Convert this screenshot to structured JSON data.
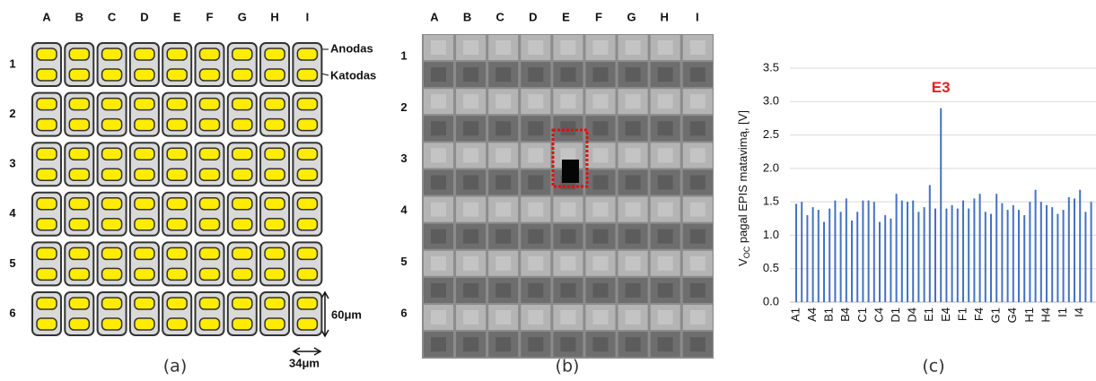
{
  "panel_a": {
    "columns": [
      "A",
      "B",
      "C",
      "D",
      "E",
      "F",
      "G",
      "H",
      "I"
    ],
    "rows": [
      "1",
      "2",
      "3",
      "4",
      "5",
      "6"
    ],
    "anode_label": "Anodas",
    "cathode_label": "Katodas",
    "height_label": "60μm",
    "width_label": "34μm",
    "caption": "(a)"
  },
  "panel_b": {
    "columns": [
      "A",
      "B",
      "C",
      "D",
      "E",
      "F",
      "G",
      "H",
      "I"
    ],
    "rows": [
      "1",
      "2",
      "3",
      "4",
      "5",
      "6"
    ],
    "caption": "(b)"
  },
  "chart_data": {
    "type": "bar",
    "caption": "(c)",
    "annotation": "E3",
    "ylabel": {
      "main": "V",
      "sub": "OC",
      "rest": " pagal EPIS matavimą, [V]"
    },
    "categories": [
      "A1",
      null,
      null,
      "A4",
      null,
      null,
      "B1",
      null,
      null,
      "B4",
      null,
      null,
      "C1",
      null,
      null,
      "C4",
      null,
      null,
      "D1",
      null,
      null,
      "D4",
      null,
      null,
      "E1",
      null,
      null,
      "E4",
      null,
      null,
      "F1",
      null,
      null,
      "F4",
      null,
      null,
      "G1",
      null,
      null,
      "G4",
      null,
      null,
      "H1",
      null,
      null,
      "H4",
      null,
      null,
      "I1",
      null,
      null,
      "I4",
      null,
      null
    ],
    "values": [
      1.47,
      1.5,
      1.3,
      1.42,
      1.38,
      1.2,
      1.4,
      1.52,
      1.35,
      1.55,
      1.22,
      1.35,
      1.52,
      1.52,
      1.5,
      1.2,
      1.3,
      1.25,
      1.62,
      1.52,
      1.5,
      1.52,
      1.35,
      1.42,
      1.75,
      1.4,
      2.9,
      1.4,
      1.45,
      1.4,
      1.52,
      1.4,
      1.55,
      1.62,
      1.35,
      1.32,
      1.62,
      1.48,
      1.38,
      1.45,
      1.38,
      1.3,
      1.5,
      1.68,
      1.5,
      1.45,
      1.42,
      1.32,
      1.38,
      1.57,
      1.55,
      1.68,
      1.35,
      1.5
    ],
    "color": "#4472c4",
    "annotation_color": "#e02020",
    "ylim": [
      0,
      3.5
    ],
    "yticks": [
      {
        "value": 0,
        "label": "0.0"
      },
      {
        "value": 0.5,
        "label": "0.5"
      },
      {
        "value": 1,
        "label": "1.0"
      },
      {
        "value": 1.5,
        "label": "1.5"
      },
      {
        "value": 2,
        "label": "2.0"
      },
      {
        "value": 2.5,
        "label": "2.5"
      },
      {
        "value": 3,
        "label": "3.0"
      },
      {
        "value": 3.5,
        "label": "3.5"
      }
    ],
    "grid": true
  }
}
